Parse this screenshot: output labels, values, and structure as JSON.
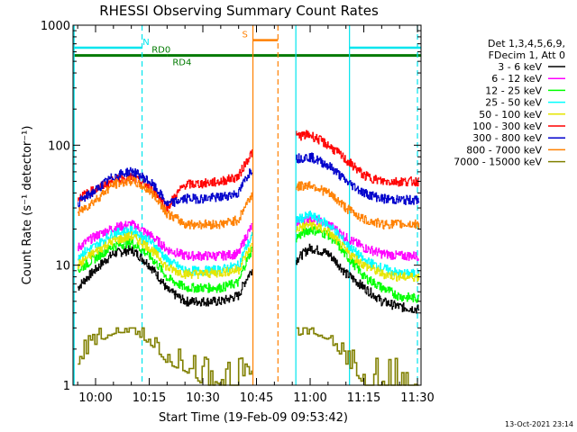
{
  "chart_data": {
    "type": "line",
    "title": "RHESSI Observing Summary Count Rates",
    "xlabel": "Start Time (19-Feb-09 09:53:42)",
    "ylabel": "Count Rate (s⁻¹ detector⁻¹)",
    "yscale": "log",
    "ylim": [
      1,
      1000
    ],
    "xlim": [
      "09:53:42",
      "11:31:00"
    ],
    "grid": false,
    "legend_position": "right",
    "yticks": [
      1,
      10,
      100,
      1000
    ],
    "ytick_labels": [
      "1",
      "10",
      "100",
      "1000"
    ],
    "xticks": [
      "10:00",
      "10:15",
      "10:30",
      "10:45",
      "11:00",
      "11:15",
      "11:30"
    ],
    "legend_header": [
      "Det 1,3,4,5,6,9,",
      "FDecim 1, Att 0"
    ],
    "footer_timestamp": "13-Oct-2021 23:14",
    "data_gap": [
      "10:51",
      "10:56"
    ],
    "segments": [
      {
        "label": "N",
        "start": "09:54",
        "end": "10:13",
        "y": 650,
        "color": "#00e5ee"
      },
      {
        "label": "S",
        "start": "10:44",
        "end": "10:51",
        "y": 750,
        "color": "#ff8000"
      },
      {
        "label": "RD0",
        "start": "09:54",
        "end": "10:20",
        "y": 560,
        "color": "#007a00"
      },
      {
        "label": "RD4",
        "start": "10:20",
        "end": "11:31",
        "y": 560,
        "color": "#007a00"
      },
      {
        "label": "",
        "start": "11:11",
        "end": "11:31",
        "y": 650,
        "color": "#00e5ee"
      }
    ],
    "vlines": [
      {
        "time": "09:54",
        "color": "#00e5ee",
        "style": "solid"
      },
      {
        "time": "10:13",
        "color": "#00e5ee",
        "style": "dashed"
      },
      {
        "time": "10:44",
        "color": "#ff8000",
        "style": "solid"
      },
      {
        "time": "10:51",
        "color": "#ff8000",
        "style": "dashed"
      },
      {
        "time": "10:56",
        "color": "#00e5ee",
        "style": "solid"
      },
      {
        "time": "11:11",
        "color": "#00e5ee",
        "style": "solid"
      },
      {
        "time": "11:30",
        "color": "#00e5ee",
        "style": "dashed"
      }
    ],
    "x": [
      "09:55",
      "10:00",
      "10:05",
      "10:10",
      "10:15",
      "10:20",
      "10:25",
      "10:30",
      "10:35",
      "10:40",
      "10:44",
      "10:56",
      "11:00",
      "11:05",
      "11:10",
      "11:15",
      "11:20",
      "11:25",
      "11:30"
    ],
    "series": [
      {
        "name": "3 - 6 keV",
        "color": "#000000",
        "values": [
          6.5,
          9.2,
          12.5,
          13.5,
          10.0,
          6.2,
          5.0,
          5.0,
          5.0,
          5.6,
          9.5,
          11.0,
          14.0,
          12.5,
          8.5,
          6.5,
          5.0,
          4.5,
          4.3
        ]
      },
      {
        "name": "6 - 12 keV",
        "color": "#ff00ff",
        "values": [
          14.0,
          17.5,
          20.5,
          22.0,
          18.0,
          13.5,
          12.0,
          12.0,
          12.0,
          12.5,
          22.0,
          23.0,
          24.5,
          22.0,
          17.0,
          14.0,
          12.5,
          12.0,
          12.0
        ]
      },
      {
        "name": "12 - 25 keV",
        "color": "#00ff00",
        "values": [
          9.0,
          11.5,
          14.5,
          15.5,
          12.0,
          7.8,
          6.5,
          6.5,
          6.5,
          7.2,
          14.0,
          17.0,
          20.0,
          18.0,
          12.0,
          8.0,
          6.5,
          5.5,
          5.3
        ]
      },
      {
        "name": "25 - 50 keV",
        "color": "#00ffff",
        "values": [
          12.0,
          14.5,
          18.5,
          19.5,
          16.0,
          11.0,
          9.0,
          9.0,
          9.2,
          10.0,
          18.0,
          24.0,
          26.0,
          22.0,
          15.0,
          11.0,
          9.5,
          8.5,
          8.5
        ]
      },
      {
        "name": "50 - 100 keV",
        "color": "#e5e500",
        "values": [
          10.0,
          13.0,
          16.0,
          17.5,
          14.0,
          9.5,
          8.5,
          8.5,
          8.7,
          9.2,
          15.0,
          20.0,
          22.0,
          19.0,
          13.0,
          10.0,
          8.5,
          8.0,
          8.0
        ]
      },
      {
        "name": "100 - 300 keV",
        "color": "#ff0000",
        "values": [
          36.0,
          43.0,
          51.0,
          54.0,
          45.0,
          30.0,
          47.0,
          48.0,
          50.0,
          55.0,
          90.0,
          120.0,
          122.0,
          100.0,
          75.0,
          56.0,
          50.0,
          50.0,
          50.0
        ]
      },
      {
        "name": "300 - 800 keV",
        "color": "#0000cc",
        "values": [
          33.0,
          42.0,
          55.0,
          61.0,
          50.0,
          32.0,
          36.0,
          36.0,
          37.0,
          40.0,
          66.0,
          78.0,
          80.0,
          68.0,
          50.0,
          40.0,
          36.0,
          35.0,
          35.0
        ]
      },
      {
        "name": "800 - 7000 keV",
        "color": "#ff8000",
        "values": [
          27.0,
          35.0,
          47.0,
          51.0,
          42.0,
          27.0,
          22.0,
          22.0,
          22.0,
          24.0,
          40.0,
          45.0,
          47.0,
          40.0,
          30.0,
          24.0,
          22.0,
          22.0,
          22.0
        ]
      },
      {
        "name": "7000 - 15000 keV",
        "color": "#808000",
        "values": [
          1.5,
          2.2,
          2.7,
          2.8,
          2.2,
          1.5,
          1.3,
          1.0,
          1.0,
          1.0,
          1.0,
          2.6,
          2.7,
          2.4,
          1.5,
          1.0,
          1.0,
          1.0,
          1.0
        ]
      }
    ]
  }
}
